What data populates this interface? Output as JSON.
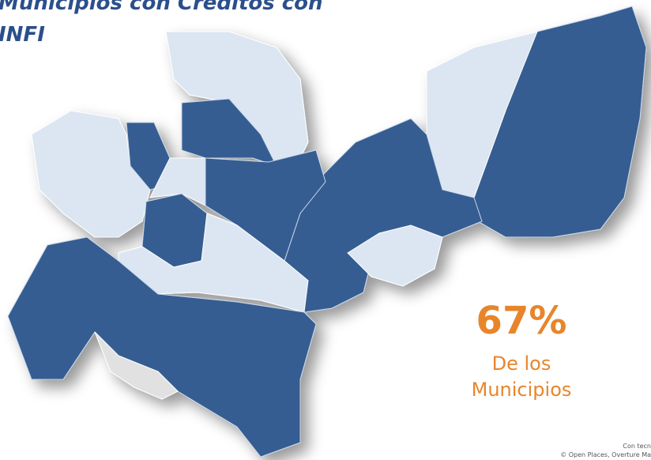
{
  "title_lines": [
    "Municipios con Créditos con",
    "INFI"
  ],
  "stat": {
    "value": "67%",
    "caption_lines": [
      "De los",
      "Municipios"
    ]
  },
  "attribution": [
    "Con tecn",
    "© Open Places, Overture Ma"
  ]
}
